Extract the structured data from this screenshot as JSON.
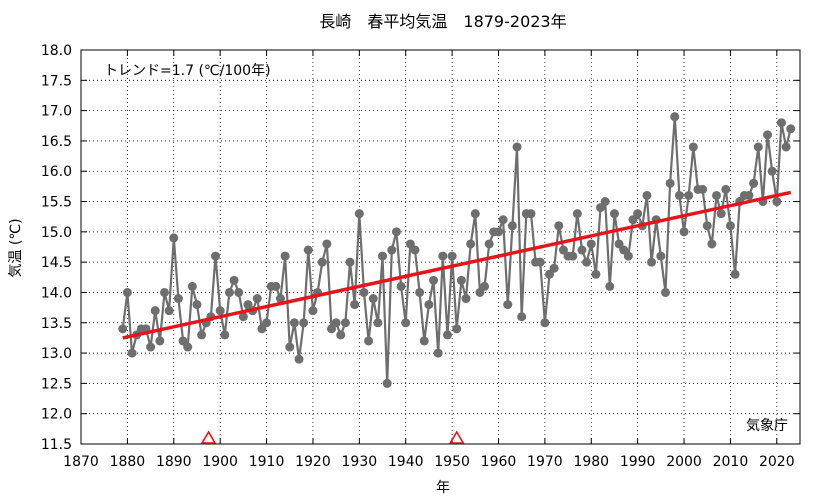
{
  "chart_data": {
    "type": "line",
    "title": "長崎　春平均気温　1879-2023年",
    "xlabel": "年",
    "ylabel": "気温 (℃)",
    "xlim": [
      1870,
      2025
    ],
    "ylim": [
      11.5,
      18.0
    ],
    "xticks": [
      1870,
      1880,
      1890,
      1900,
      1910,
      1920,
      1930,
      1940,
      1950,
      1960,
      1970,
      1980,
      1990,
      2000,
      2010,
      2020
    ],
    "yticks": [
      11.5,
      12.0,
      12.5,
      13.0,
      13.5,
      14.0,
      14.5,
      15.0,
      15.5,
      16.0,
      16.5,
      17.0,
      17.5,
      18.0
    ],
    "ytick_labels": [
      "11.5",
      "12.0",
      "12.5",
      "13.0",
      "13.5",
      "14.0",
      "14.5",
      "15.0",
      "15.5",
      "16.0",
      "16.5",
      "17.0",
      "17.5",
      "18.0"
    ],
    "grid": true,
    "trend_label": "トレンド=1.7 (℃/100年)",
    "trend": {
      "x": [
        1879,
        2023
      ],
      "y": [
        13.25,
        15.65
      ],
      "color": "#e8141c"
    },
    "series_color": "#6e6e6e",
    "marker_years": [
      1897.5,
      1951
    ],
    "marker_color": "#e8141c",
    "source_label": "気象庁",
    "series": [
      {
        "x": [
          1879,
          1880,
          1881,
          1882,
          1883,
          1884,
          1885,
          1886,
          1887,
          1888,
          1889,
          1890,
          1891,
          1892,
          1893,
          1894,
          1895,
          1896,
          1897,
          1898,
          1899,
          1900,
          1901,
          1902,
          1903,
          1904,
          1905,
          1906,
          1907,
          1908,
          1909,
          1910,
          1911,
          1912,
          1913,
          1914,
          1915,
          1916,
          1917,
          1918,
          1919,
          1920,
          1921,
          1922,
          1923,
          1924,
          1925,
          1926,
          1927,
          1928,
          1929,
          1930,
          1931,
          1932,
          1933,
          1934,
          1935,
          1936,
          1937,
          1938,
          1939,
          1940,
          1941,
          1942,
          1943,
          1944,
          1945,
          1946,
          1947,
          1948,
          1949,
          1950,
          1951,
          1952,
          1953,
          1954,
          1955,
          1956,
          1957,
          1958,
          1959,
          1960,
          1961,
          1962,
          1963,
          1964,
          1965,
          1966,
          1967,
          1968,
          1969,
          1970,
          1971,
          1972,
          1973,
          1974,
          1975,
          1976,
          1977,
          1978,
          1979,
          1980,
          1981,
          1982,
          1983,
          1984,
          1985,
          1986,
          1987,
          1988,
          1989,
          1990,
          1991,
          1992,
          1993,
          1994,
          1995,
          1996,
          1997,
          1998,
          1999,
          2000,
          2001,
          2002,
          2003,
          2004,
          2005,
          2006,
          2007,
          2008,
          2009,
          2010,
          2011,
          2012,
          2013,
          2014,
          2015,
          2016,
          2017,
          2018,
          2019,
          2020,
          2021,
          2022,
          2023
        ],
        "values": [
          13.4,
          14.0,
          13.0,
          13.3,
          13.4,
          13.4,
          13.1,
          13.7,
          13.2,
          14.0,
          13.7,
          14.9,
          13.9,
          13.2,
          13.1,
          14.1,
          13.8,
          13.3,
          13.5,
          13.6,
          14.6,
          13.7,
          13.3,
          14.0,
          14.2,
          14.0,
          13.6,
          13.8,
          13.7,
          13.9,
          13.4,
          13.5,
          14.1,
          14.1,
          13.9,
          14.6,
          13.1,
          13.5,
          12.9,
          13.5,
          14.7,
          13.7,
          14.0,
          14.5,
          14.8,
          13.4,
          13.5,
          13.3,
          13.5,
          14.5,
          13.8,
          15.3,
          14.0,
          13.2,
          13.9,
          13.5,
          14.6,
          12.5,
          14.7,
          15.0,
          14.1,
          13.5,
          14.8,
          14.7,
          14.0,
          13.2,
          13.8,
          14.2,
          13.0,
          14.6,
          13.3,
          14.6,
          13.4,
          14.2,
          13.9,
          14.8,
          15.3,
          14.0,
          14.1,
          14.8,
          15.0,
          15.0,
          15.2,
          13.8,
          15.1,
          16.4,
          13.6,
          15.3,
          15.3,
          14.5,
          14.5,
          13.5,
          14.3,
          14.4,
          15.1,
          14.7,
          14.6,
          14.6,
          15.3,
          14.7,
          14.5,
          14.8,
          14.3,
          15.4,
          15.5,
          14.1,
          15.3,
          14.8,
          14.7,
          14.6,
          15.2,
          15.3,
          15.1,
          15.6,
          14.5,
          15.2,
          14.6,
          14.0,
          15.8,
          16.9,
          15.6,
          15.0,
          15.6,
          16.4,
          15.7,
          15.7,
          15.1,
          14.8,
          15.6,
          15.3,
          15.7,
          15.1,
          14.3,
          15.5,
          15.6,
          15.6,
          15.8,
          16.4,
          15.5,
          16.6,
          16.0,
          15.5,
          16.8,
          16.4,
          16.7
        ]
      }
    ]
  }
}
